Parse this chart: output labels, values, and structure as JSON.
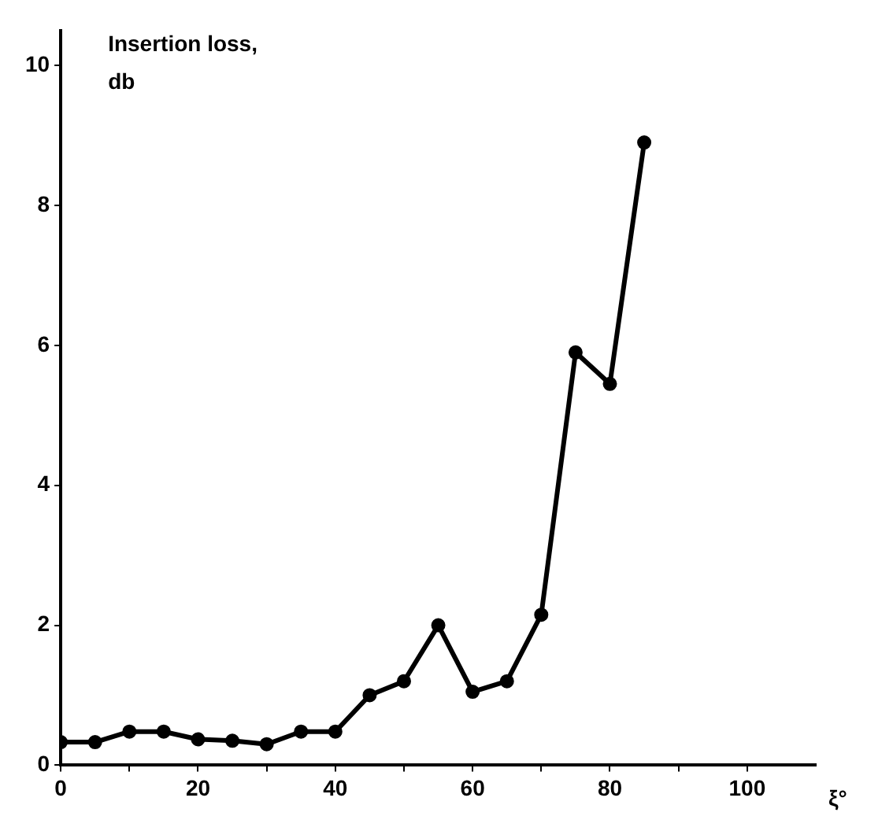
{
  "chart_data": {
    "type": "line",
    "ylabel": "Insertion loss,\ndb",
    "xlabel": "ξ°",
    "x": [
      0,
      5,
      10,
      15,
      20,
      25,
      30,
      35,
      40,
      45,
      50,
      55,
      60,
      65,
      70,
      75,
      80,
      85
    ],
    "series": [
      {
        "color": "#000000",
        "values": [
          0.33,
          0.33,
          0.48,
          0.48,
          0.37,
          0.35,
          0.3,
          0.48,
          0.48,
          1.0,
          1.2,
          2.0,
          1.05,
          1.2,
          2.15,
          5.9,
          5.45,
          8.9
        ]
      }
    ],
    "xlim": [
      0,
      110
    ],
    "xticks": [
      0,
      {
        "value": 10,
        "label": null
      },
      20,
      {
        "value": 30,
        "label": null
      },
      40,
      {
        "value": 50,
        "label": null
      },
      60,
      {
        "value": 70,
        "label": null
      },
      80,
      {
        "value": 90,
        "label": null
      },
      100
    ],
    "ylim": [
      0,
      10.5
    ],
    "yticks": [
      0,
      2,
      4,
      6,
      8,
      10
    ],
    "grid": false,
    "legend": false,
    "marker": "circle",
    "line_style": "solid"
  }
}
